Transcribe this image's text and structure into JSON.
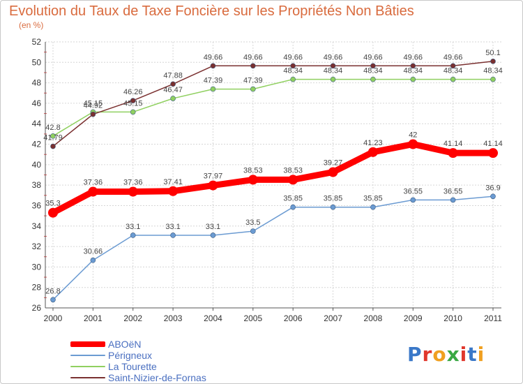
{
  "title": "Evolution du Taux de Taxe Foncière sur les Propriétés Non Bâties",
  "subtitle": "(en %)",
  "logo": {
    "text": "Proxiti",
    "letter_colors": [
      "#3a78c8",
      "#e0372c",
      "#f0a020",
      "#3aa844",
      "#e0372c",
      "#3a78c8",
      "#f0a020"
    ]
  },
  "chart_data": {
    "type": "line",
    "categories": [
      "2000",
      "2001",
      "2002",
      "2003",
      "2004",
      "2005",
      "2006",
      "2007",
      "2008",
      "2009",
      "2010",
      "2011"
    ],
    "ylim": [
      26,
      52
    ],
    "yticks": [
      "26",
      "28",
      "30",
      "32",
      "34",
      "36",
      "38",
      "40",
      "42",
      "44",
      "46",
      "48",
      "50",
      "52"
    ],
    "grid": true,
    "legend_position": "bottom-left",
    "series": [
      {
        "name": "ABOëN",
        "color": "#ff0000",
        "values": [
          35.3,
          37.36,
          37.36,
          37.41,
          37.97,
          38.53,
          38.53,
          39.27,
          41.23,
          42,
          41.14,
          41.14
        ],
        "labels": [
          "35.3",
          "37.36",
          "37.36",
          "37.41",
          "37.97",
          "38.53",
          "38.53",
          "39.27",
          "41.23",
          "42",
          "41.14",
          "41.14"
        ]
      },
      {
        "name": "Périgneux",
        "color": "#6b9bd2",
        "values": [
          26.8,
          30.66,
          33.1,
          33.1,
          33.1,
          33.5,
          35.85,
          35.85,
          35.85,
          36.55,
          36.55,
          36.9
        ],
        "labels": [
          "26.8",
          "30.66",
          "33.1",
          "33.1",
          "33.1",
          "33.5",
          "35.85",
          "35.85",
          "35.85",
          "36.55",
          "36.55",
          "36.9"
        ]
      },
      {
        "name": "La Tourette",
        "color": "#90d060",
        "values": [
          42.8,
          45.15,
          45.15,
          46.47,
          47.39,
          47.39,
          48.34,
          48.34,
          48.34,
          48.34,
          48.34,
          48.34
        ],
        "labels": [
          "42.8",
          "45.15",
          "45.15",
          "46.47",
          "47.39",
          "47.39",
          "48.34",
          "48.34",
          "48.34",
          "48.34",
          "48.34",
          "48.34"
        ]
      },
      {
        "name": "Saint-Nizier-de-Fornas",
        "color": "#7a3030",
        "values": [
          41.79,
          44.92,
          46.26,
          47.88,
          49.66,
          49.66,
          49.66,
          49.66,
          49.66,
          49.66,
          49.66,
          50.1
        ],
        "labels": [
          "41.79",
          "44.92",
          "46.26",
          "47.88",
          "49.66",
          "49.66",
          "49.66",
          "49.66",
          "49.66",
          "49.66",
          "49.66",
          "50.1"
        ]
      }
    ]
  }
}
